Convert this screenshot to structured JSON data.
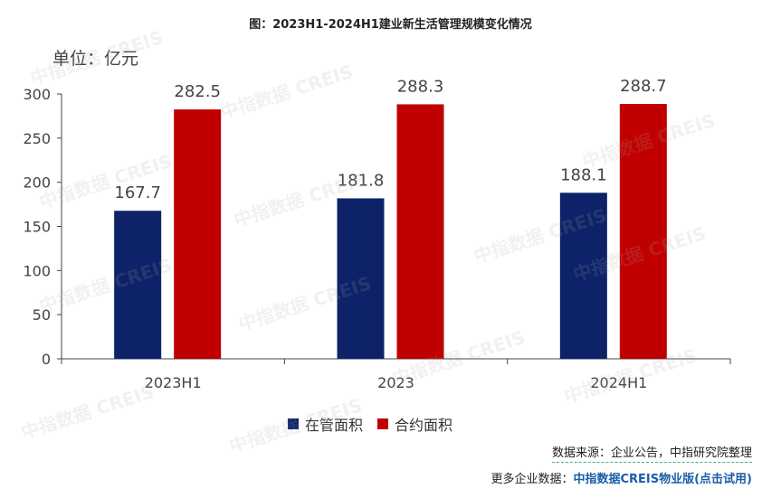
{
  "title": "图：2023H1-2024H1建业新生活管理规模变化情况",
  "unit_label": "单位：亿元",
  "watermark": "中指数据 CREIS",
  "legend": [
    {
      "label": "在管面积",
      "color": "#0d2268"
    },
    {
      "label": "合约面积",
      "color": "#c00000"
    }
  ],
  "footer": {
    "source": "数据来源：企业公告，中指研究院整理",
    "more_prefix": "更多企业数据：",
    "more_link": "中指数据CREIS物业版(点击试用)"
  },
  "chart_data": {
    "type": "bar",
    "title": "图：2023H1-2024H1建业新生活管理规模变化情况",
    "ylabel": "单位：亿元",
    "categories": [
      "2023H1",
      "2023",
      "2024H1"
    ],
    "series": [
      {
        "name": "在管面积",
        "color": "#0d2268",
        "values": [
          167.7,
          181.8,
          188.1
        ]
      },
      {
        "name": "合约面积",
        "color": "#c00000",
        "values": [
          282.5,
          288.3,
          288.7
        ]
      }
    ],
    "ylim": [
      0,
      300
    ],
    "yticks": [
      0,
      50,
      100,
      150,
      200,
      250,
      300
    ],
    "grid": false,
    "legend_position": "bottom"
  }
}
